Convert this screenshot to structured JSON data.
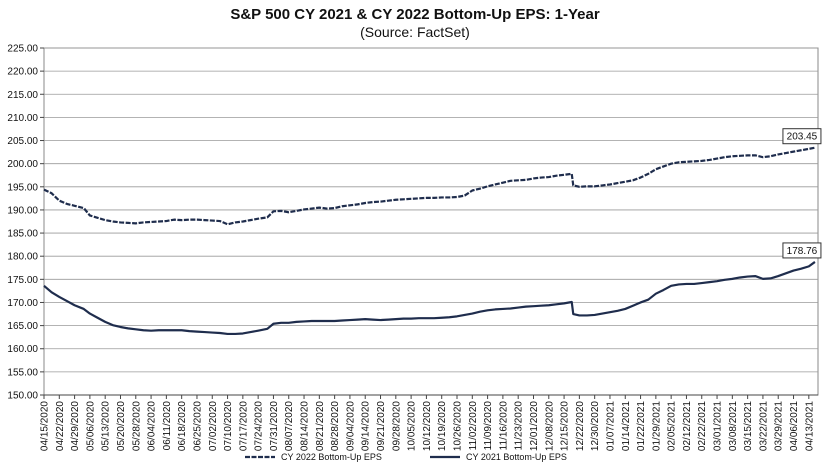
{
  "chart_data": {
    "type": "line",
    "title": "S&P 500 CY 2021 & CY 2022 Bottom-Up EPS: 1-Year",
    "subtitle": "(Source: FactSet)",
    "xlabel": "",
    "ylabel": "",
    "ylim": [
      150,
      225
    ],
    "y_ticks": [
      "150.00",
      "155.00",
      "160.00",
      "165.00",
      "170.00",
      "175.00",
      "180.00",
      "185.00",
      "190.00",
      "195.00",
      "200.00",
      "205.00",
      "210.00",
      "215.00",
      "220.00",
      "225.00"
    ],
    "x_ticks": [
      "04/15/2020",
      "04/22/2020",
      "04/29/2020",
      "05/06/2020",
      "05/13/2020",
      "05/20/2020",
      "05/28/2020",
      "06/04/2020",
      "06/11/2020",
      "06/18/2020",
      "06/25/2020",
      "07/02/2020",
      "07/10/2020",
      "07/17/2020",
      "07/24/2020",
      "07/31/2020",
      "08/07/2020",
      "08/14/2020",
      "08/21/2020",
      "08/28/2020",
      "09/04/2020",
      "09/14/2020",
      "09/21/2020",
      "09/28/2020",
      "10/05/2020",
      "10/12/2020",
      "10/19/2020",
      "10/26/2020",
      "11/02/2020",
      "11/09/2020",
      "11/16/2020",
      "11/23/2020",
      "12/01/2020",
      "12/08/2020",
      "12/15/2020",
      "12/22/2020",
      "12/30/2020",
      "01/07/2021",
      "01/14/2021",
      "01/22/2021",
      "01/29/2021",
      "02/05/2021",
      "02/12/2021",
      "02/22/2021",
      "03/01/2021",
      "03/08/2021",
      "03/15/2021",
      "03/22/2021",
      "03/29/2021",
      "04/06/2021",
      "04/13/2021"
    ],
    "grid": "horizontal",
    "legend_position": "bottom",
    "series": [
      {
        "name": "CY 2022 Bottom-Up EPS",
        "style": "dashed",
        "color": "#1f2d4d",
        "end_label": "203.45",
        "points": [
          [
            0,
            194.4
          ],
          [
            0.5,
            193.6
          ],
          [
            1,
            192.0
          ],
          [
            1.5,
            191.3
          ],
          [
            2,
            190.9
          ],
          [
            2.6,
            190.4
          ],
          [
            3,
            188.8
          ],
          [
            3.5,
            188.3
          ],
          [
            4,
            187.8
          ],
          [
            4.5,
            187.5
          ],
          [
            5,
            187.3
          ],
          [
            5.5,
            187.2
          ],
          [
            6,
            187.1
          ],
          [
            6.5,
            187.3
          ],
          [
            7,
            187.4
          ],
          [
            7.5,
            187.5
          ],
          [
            8,
            187.6
          ],
          [
            8.5,
            187.9
          ],
          [
            9,
            187.8
          ],
          [
            9.5,
            187.9
          ],
          [
            10,
            187.9
          ],
          [
            10.5,
            187.8
          ],
          [
            11,
            187.7
          ],
          [
            11.5,
            187.6
          ],
          [
            12,
            186.9
          ],
          [
            12.5,
            187.3
          ],
          [
            13,
            187.5
          ],
          [
            13.5,
            187.8
          ],
          [
            14,
            188.1
          ],
          [
            14.6,
            188.4
          ],
          [
            15,
            189.7
          ],
          [
            15.5,
            189.8
          ],
          [
            16,
            189.5
          ],
          [
            16.5,
            189.8
          ],
          [
            17,
            190.1
          ],
          [
            17.5,
            190.3
          ],
          [
            18,
            190.5
          ],
          [
            18.5,
            190.3
          ],
          [
            19,
            190.4
          ],
          [
            19.5,
            190.8
          ],
          [
            20,
            191.0
          ],
          [
            20.5,
            191.2
          ],
          [
            21,
            191.5
          ],
          [
            21.5,
            191.7
          ],
          [
            22,
            191.8
          ],
          [
            22.5,
            192.0
          ],
          [
            23,
            192.2
          ],
          [
            23.5,
            192.3
          ],
          [
            24,
            192.4
          ],
          [
            24.5,
            192.5
          ],
          [
            25,
            192.6
          ],
          [
            25.5,
            192.6
          ],
          [
            26,
            192.7
          ],
          [
            26.5,
            192.7
          ],
          [
            27,
            192.8
          ],
          [
            27.5,
            193.1
          ],
          [
            28,
            194.2
          ],
          [
            28.5,
            194.6
          ],
          [
            29,
            195.1
          ],
          [
            29.5,
            195.5
          ],
          [
            30,
            195.9
          ],
          [
            30.5,
            196.3
          ],
          [
            31,
            196.4
          ],
          [
            31.5,
            196.5
          ],
          [
            32,
            196.8
          ],
          [
            32.5,
            197.0
          ],
          [
            33,
            197.1
          ],
          [
            33.5,
            197.4
          ],
          [
            34,
            197.6
          ],
          [
            34.5,
            197.8
          ],
          [
            34.6,
            195.3
          ],
          [
            35,
            195.0
          ],
          [
            35.5,
            195.1
          ],
          [
            36,
            195.1
          ],
          [
            36.5,
            195.3
          ],
          [
            37,
            195.5
          ],
          [
            37.5,
            195.8
          ],
          [
            38,
            196.1
          ],
          [
            38.5,
            196.4
          ],
          [
            39,
            197.0
          ],
          [
            39.5,
            197.8
          ],
          [
            40,
            198.8
          ],
          [
            40.5,
            199.4
          ],
          [
            41,
            200.0
          ],
          [
            41.5,
            200.3
          ],
          [
            42,
            200.4
          ],
          [
            42.5,
            200.5
          ],
          [
            43,
            200.6
          ],
          [
            43.5,
            200.8
          ],
          [
            44,
            201.1
          ],
          [
            44.5,
            201.4
          ],
          [
            45,
            201.6
          ],
          [
            45.5,
            201.7
          ],
          [
            46,
            201.8
          ],
          [
            46.5,
            201.8
          ],
          [
            47,
            201.4
          ],
          [
            47.5,
            201.6
          ],
          [
            48,
            202.0
          ],
          [
            48.5,
            202.3
          ],
          [
            49,
            202.6
          ],
          [
            49.5,
            202.9
          ],
          [
            50,
            203.2
          ],
          [
            50.4,
            203.45
          ]
        ]
      },
      {
        "name": "CY 2021 Bottom-Up EPS",
        "style": "solid",
        "color": "#1f2d4d",
        "end_label": "178.76",
        "points": [
          [
            0,
            173.6
          ],
          [
            0.5,
            172.2
          ],
          [
            1,
            171.2
          ],
          [
            1.5,
            170.3
          ],
          [
            2,
            169.4
          ],
          [
            2.6,
            168.6
          ],
          [
            3,
            167.6
          ],
          [
            3.5,
            166.7
          ],
          [
            4,
            165.8
          ],
          [
            4.5,
            165.1
          ],
          [
            5,
            164.7
          ],
          [
            5.5,
            164.4
          ],
          [
            6,
            164.2
          ],
          [
            6.5,
            164.0
          ],
          [
            7,
            163.9
          ],
          [
            7.5,
            164.0
          ],
          [
            8,
            164.0
          ],
          [
            8.5,
            164.0
          ],
          [
            9,
            164.0
          ],
          [
            9.5,
            163.8
          ],
          [
            10,
            163.7
          ],
          [
            10.5,
            163.6
          ],
          [
            11,
            163.5
          ],
          [
            11.5,
            163.4
          ],
          [
            12,
            163.2
          ],
          [
            12.5,
            163.2
          ],
          [
            13,
            163.3
          ],
          [
            13.5,
            163.6
          ],
          [
            14,
            163.9
          ],
          [
            14.6,
            164.3
          ],
          [
            15,
            165.4
          ],
          [
            15.5,
            165.6
          ],
          [
            16,
            165.6
          ],
          [
            16.5,
            165.8
          ],
          [
            17,
            165.9
          ],
          [
            17.5,
            166.0
          ],
          [
            18,
            166.0
          ],
          [
            18.5,
            166.0
          ],
          [
            19,
            166.0
          ],
          [
            19.5,
            166.1
          ],
          [
            20,
            166.2
          ],
          [
            20.5,
            166.3
          ],
          [
            21,
            166.4
          ],
          [
            21.5,
            166.3
          ],
          [
            22,
            166.2
          ],
          [
            22.5,
            166.3
          ],
          [
            23,
            166.4
          ],
          [
            23.5,
            166.5
          ],
          [
            24,
            166.5
          ],
          [
            24.5,
            166.6
          ],
          [
            25,
            166.6
          ],
          [
            25.5,
            166.6
          ],
          [
            26,
            166.7
          ],
          [
            26.5,
            166.8
          ],
          [
            27,
            167.0
          ],
          [
            27.5,
            167.3
          ],
          [
            28,
            167.6
          ],
          [
            28.5,
            168.0
          ],
          [
            29,
            168.3
          ],
          [
            29.5,
            168.5
          ],
          [
            30,
            168.6
          ],
          [
            30.5,
            168.7
          ],
          [
            31,
            168.9
          ],
          [
            31.5,
            169.1
          ],
          [
            32,
            169.2
          ],
          [
            32.5,
            169.3
          ],
          [
            33,
            169.4
          ],
          [
            33.5,
            169.6
          ],
          [
            34,
            169.8
          ],
          [
            34.5,
            170.1
          ],
          [
            34.6,
            167.5
          ],
          [
            35,
            167.2
          ],
          [
            35.5,
            167.2
          ],
          [
            36,
            167.3
          ],
          [
            36.5,
            167.6
          ],
          [
            37,
            167.9
          ],
          [
            37.5,
            168.2
          ],
          [
            38,
            168.6
          ],
          [
            38.5,
            169.3
          ],
          [
            39,
            170.0
          ],
          [
            39.5,
            170.6
          ],
          [
            40,
            171.9
          ],
          [
            40.5,
            172.7
          ],
          [
            41,
            173.6
          ],
          [
            41.5,
            173.9
          ],
          [
            42,
            174.0
          ],
          [
            42.5,
            174.0
          ],
          [
            43,
            174.2
          ],
          [
            43.5,
            174.4
          ],
          [
            44,
            174.6
          ],
          [
            44.5,
            174.9
          ],
          [
            45,
            175.1
          ],
          [
            45.5,
            175.4
          ],
          [
            46,
            175.6
          ],
          [
            46.5,
            175.7
          ],
          [
            47,
            175.1
          ],
          [
            47.5,
            175.2
          ],
          [
            48,
            175.7
          ],
          [
            48.5,
            176.3
          ],
          [
            49,
            176.9
          ],
          [
            49.5,
            177.3
          ],
          [
            50,
            177.8
          ],
          [
            50.4,
            178.76
          ]
        ]
      }
    ]
  }
}
